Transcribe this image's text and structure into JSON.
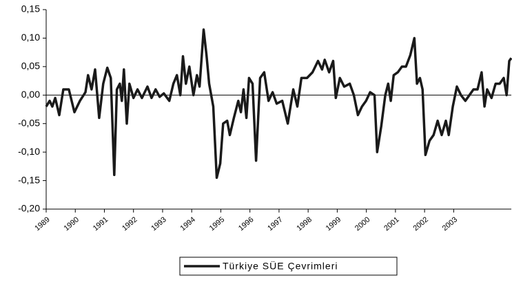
{
  "chart_data": {
    "type": "line",
    "series": [
      {
        "name": "Türkiye SÜE Çevrimleri",
        "color": "#1a1a1a",
        "values": [
          -0.02,
          -0.01,
          -0.02,
          -0.005,
          -0.035,
          0.01,
          0.01,
          -0.03,
          -0.01,
          0.005,
          0.035,
          0.01,
          0.045,
          -0.04,
          0.02,
          0.048,
          0.03,
          -0.14,
          0.01,
          0.02,
          -0.01,
          0.045,
          -0.05,
          0.02,
          -0.005,
          0.01,
          -0.005,
          0.015,
          -0.005,
          0.01,
          -0.003,
          0.003,
          -0.01,
          0.02,
          0.035,
          0.0,
          0.068,
          0.02,
          0.05,
          0.0,
          0.035,
          0.015,
          0.115,
          0.07,
          0.02,
          -0.02,
          -0.145,
          -0.12,
          -0.05,
          -0.045,
          -0.07,
          -0.04,
          -0.01,
          -0.03,
          0.01,
          -0.04,
          0.03,
          0.02,
          -0.115,
          0.03,
          0.04,
          -0.01,
          0.005,
          -0.015,
          -0.01,
          -0.05,
          0.01,
          -0.02,
          0.03,
          0.03,
          0.04,
          0.06,
          0.045,
          0.062,
          0.04,
          0.06,
          -0.005,
          0.03,
          0.015,
          0.02,
          0.0,
          -0.035,
          -0.02,
          -0.01,
          0.005,
          0.0,
          -0.1,
          -0.055,
          0.0,
          0.02,
          -0.01,
          0.035,
          0.04,
          0.05,
          0.05,
          0.07,
          0.1,
          0.02,
          0.03,
          0.01,
          -0.105,
          -0.08,
          -0.07,
          -0.045,
          -0.07,
          -0.045,
          -0.07,
          -0.02,
          0.015,
          0.0,
          -0.01,
          0.0,
          0.01,
          0.01,
          0.04,
          -0.02,
          0.01,
          -0.005,
          0.02,
          0.02,
          0.03,
          0.0,
          0.06,
          0.065
        ]
      }
    ],
    "x": [
      1989.0,
      1989.12,
      1989.21,
      1989.31,
      1989.45,
      1989.59,
      1989.78,
      1989.97,
      1990.16,
      1990.35,
      1990.44,
      1990.56,
      1990.68,
      1990.82,
      1990.96,
      1991.1,
      1991.22,
      1991.34,
      1991.43,
      1991.53,
      1991.6,
      1991.67,
      1991.77,
      1991.86,
      1992.0,
      1992.14,
      1992.29,
      1992.48,
      1992.62,
      1992.76,
      1992.9,
      1993.04,
      1993.23,
      1993.37,
      1993.49,
      1993.61,
      1993.7,
      1993.8,
      1993.92,
      1994.06,
      1994.18,
      1994.27,
      1994.41,
      1994.51,
      1994.6,
      1994.74,
      1994.86,
      1994.98,
      1995.08,
      1995.22,
      1995.31,
      1995.45,
      1995.6,
      1995.69,
      1995.78,
      1995.88,
      1995.97,
      1996.09,
      1996.21,
      1996.35,
      1996.49,
      1996.64,
      1996.78,
      1996.92,
      1997.11,
      1997.3,
      1997.49,
      1997.63,
      1997.77,
      1997.96,
      1998.15,
      1998.34,
      1998.48,
      1998.57,
      1998.72,
      1998.86,
      1998.95,
      1999.09,
      1999.24,
      1999.43,
      1999.57,
      1999.71,
      1999.85,
      1999.99,
      2000.13,
      2000.28,
      2000.37,
      2000.51,
      2000.65,
      2000.75,
      2000.84,
      2000.94,
      2001.08,
      2001.22,
      2001.36,
      2001.51,
      2001.65,
      2001.74,
      2001.84,
      2001.93,
      2002.03,
      2002.17,
      2002.31,
      2002.45,
      2002.59,
      2002.73,
      2002.83,
      2002.97,
      2003.11,
      2003.25,
      2003.4,
      2003.54,
      2003.68,
      2003.82,
      2003.96,
      2004.06,
      2004.15,
      2004.3,
      2004.44,
      2004.58,
      2004.72,
      2004.82,
      2004.91,
      2004.98
    ],
    "xlim": [
      1989,
      2004.98
    ],
    "xticks": [
      1989,
      1990,
      1991,
      1992,
      1993,
      1994,
      1995,
      1996,
      1997,
      1998,
      1999,
      2000,
      2001,
      2002,
      2003
    ],
    "ylim": [
      -0.2,
      0.15
    ],
    "yticks": [
      {
        "value": 0.15,
        "label": "0,15"
      },
      {
        "value": 0.1,
        "label": "0,10"
      },
      {
        "value": 0.05,
        "label": "0,05"
      },
      {
        "value": 0,
        "label": "0,00"
      },
      {
        "value": -0.05,
        "label": "-0,05"
      },
      {
        "value": -0.1,
        "label": "-0,10"
      },
      {
        "value": -0.15,
        "label": "-0,15"
      },
      {
        "value": -0.2,
        "label": "-0,20"
      }
    ],
    "legend": "bottom"
  }
}
